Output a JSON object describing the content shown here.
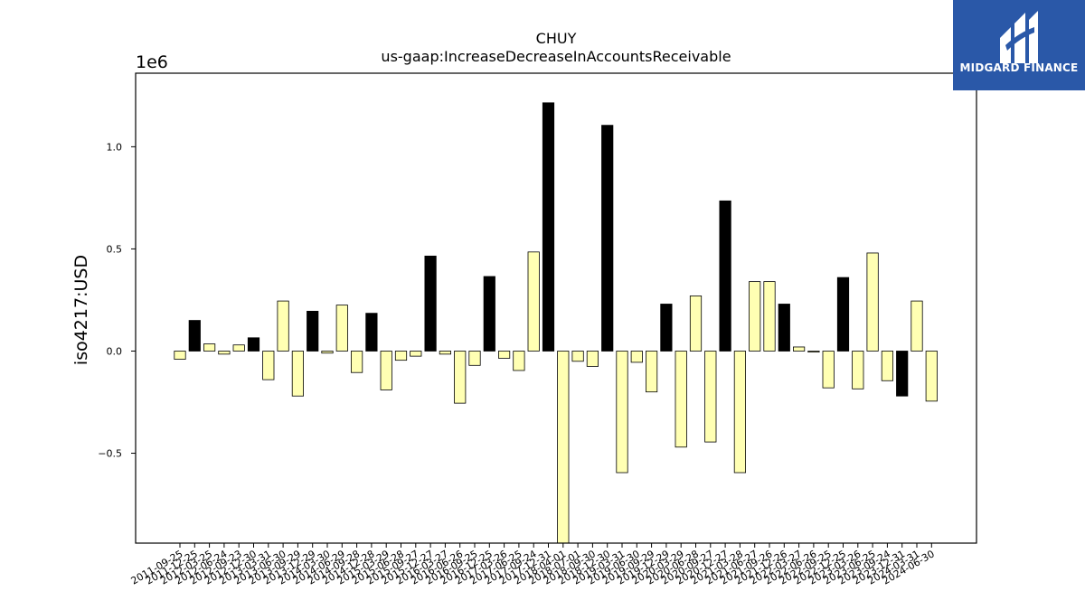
{
  "logo": {
    "text": "MIDGARD FINANCE",
    "background": "#2a58a8",
    "icon": "midgard-m-mark-icon"
  },
  "chart_data": {
    "type": "bar",
    "title": "CHUY",
    "subtitle": "us-gaap:IncreaseDecreaseInAccountsReceivable",
    "ylabel": "iso4217:USD",
    "xlabel": "",
    "y_multiplier": "1e6",
    "ylim": [
      -0.94,
      1.36
    ],
    "yticks": [
      1.0,
      0.5,
      0.0,
      -0.5
    ],
    "yticklabels": [
      "1.0",
      "0.5",
      "0.0",
      "−0.5"
    ],
    "colors": {
      "positive_q4": "#000000",
      "other": "#ffffb3",
      "edge": "#000000"
    },
    "categories": [
      "2011-09-25",
      "2011-12-25",
      "2012-03-25",
      "2012-06-24",
      "2012-09-23",
      "2012-12-30",
      "2013-03-31",
      "2013-06-30",
      "2013-09-29",
      "2013-12-29",
      "2014-03-30",
      "2014-06-29",
      "2014-09-28",
      "2014-12-28",
      "2015-03-29",
      "2015-06-28",
      "2015-09-27",
      "2015-12-27",
      "2016-03-27",
      "2016-06-26",
      "2016-09-25",
      "2016-12-25",
      "2017-03-26",
      "2017-06-25",
      "2017-09-24",
      "2017-12-31",
      "2018-04-01",
      "2018-07-01",
      "2018-09-30",
      "2018-12-30",
      "2019-03-31",
      "2019-06-30",
      "2019-09-29",
      "2019-12-29",
      "2020-03-29",
      "2020-06-28",
      "2020-09-27",
      "2020-12-27",
      "2021-03-28",
      "2021-06-27",
      "2021-09-26",
      "2021-12-26",
      "2022-03-27",
      "2022-06-26",
      "2022-09-25",
      "2022-12-25",
      "2023-03-26",
      "2023-06-25",
      "2023-09-24",
      "2023-12-31",
      "2024-03-31",
      "2024-06-30"
    ],
    "values": [
      -0.04,
      0.15,
      0.035,
      -0.015,
      0.03,
      0.065,
      -0.14,
      0.245,
      -0.22,
      0.195,
      -0.01,
      0.225,
      -0.105,
      0.185,
      -0.19,
      -0.045,
      -0.025,
      0.465,
      -0.015,
      -0.255,
      -0.07,
      0.365,
      -0.035,
      -0.095,
      0.485,
      1.215,
      -0.95,
      -0.05,
      -0.075,
      1.105,
      -0.595,
      -0.055,
      -0.2,
      0.23,
      -0.47,
      0.27,
      -0.445,
      0.735,
      -0.595,
      0.34,
      0.34,
      0.23,
      0.02,
      -0.005,
      -0.18,
      0.36,
      -0.185,
      0.48,
      -0.145,
      -0.22,
      0.245,
      -0.245
    ],
    "colored_dark": [
      false,
      true,
      false,
      false,
      false,
      true,
      false,
      false,
      false,
      true,
      false,
      false,
      false,
      true,
      false,
      false,
      false,
      true,
      false,
      false,
      false,
      true,
      false,
      false,
      false,
      true,
      false,
      false,
      false,
      true,
      false,
      false,
      false,
      true,
      false,
      false,
      false,
      true,
      false,
      false,
      false,
      true,
      false,
      false,
      false,
      true,
      false,
      false,
      false,
      true,
      false,
      false
    ]
  }
}
